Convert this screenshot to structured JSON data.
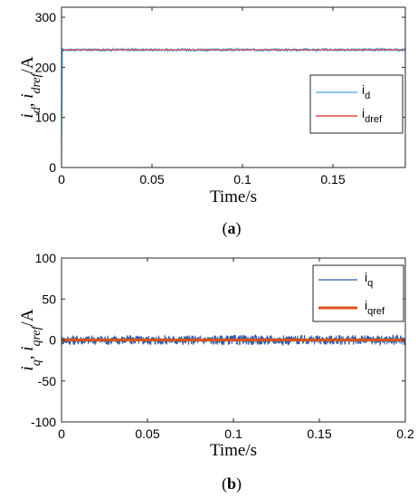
{
  "chart_data": [
    {
      "type": "line",
      "xlim": [
        0,
        0.19
      ],
      "ylim": [
        0,
        320
      ],
      "xticks": [
        0,
        0.05,
        0.1,
        0.15
      ],
      "xtick_labels": [
        "0",
        "0.05",
        "0.1",
        "0.15"
      ],
      "yticks": [
        0,
        100,
        200,
        300
      ],
      "ytick_labels": [
        "0",
        "100",
        "200",
        "300"
      ],
      "xlabel": "Time/s",
      "ylabel": {
        "parts": [
          [
            "i",
            "it",
            ""
          ],
          [
            "d",
            "it",
            "sub"
          ],
          [
            ", ",
            "it",
            ""
          ],
          [
            "i",
            "it",
            ""
          ],
          [
            "dref",
            "it",
            "sub"
          ],
          [
            "/A",
            "",
            ""
          ]
        ]
      },
      "caption": {
        "open": "(",
        "letter": "a",
        "close": ")"
      },
      "legend_position": "right",
      "series": [
        {
          "legend_main": "i",
          "legend_sub": "d",
          "color": "#4aa8d8",
          "x": [
            0,
            0.0005,
            0.19
          ],
          "y": [
            0,
            235,
            235
          ],
          "noise": 2.5
        },
        {
          "legend_main": "i",
          "legend_sub": "dref",
          "color": "#e8232a",
          "x": [
            0,
            0.19
          ],
          "y": [
            235,
            235
          ],
          "noise": 0
        }
      ]
    },
    {
      "type": "line",
      "xlim": [
        0,
        0.2
      ],
      "ylim": [
        -100,
        100
      ],
      "xticks": [
        0,
        0.05,
        0.1,
        0.15,
        0.2
      ],
      "xtick_labels": [
        "0",
        "0.05",
        "0.1",
        "0.15",
        "0.2"
      ],
      "yticks": [
        -100,
        -50,
        0,
        50,
        100
      ],
      "ytick_labels": [
        "-100",
        "-50",
        "0",
        "50",
        "100"
      ],
      "xlabel": "Time/s",
      "ylabel": {
        "parts": [
          [
            "i",
            "it",
            ""
          ],
          [
            "q",
            "it",
            "sub"
          ],
          [
            ", ",
            "it",
            ""
          ],
          [
            "i",
            "it",
            ""
          ],
          [
            "qref",
            "it",
            "sub"
          ],
          [
            "/A",
            "",
            ""
          ]
        ]
      },
      "caption": {
        "open": "(",
        "letter": "b",
        "close": ")"
      },
      "legend_position": "top-right",
      "series": [
        {
          "legend_main": "i",
          "legend_sub": "q",
          "color": "#2f5ca8",
          "x": [
            0,
            0.2
          ],
          "y": [
            0,
            0
          ],
          "noise": 6
        },
        {
          "legend_main": "i",
          "legend_sub": "qref",
          "color": "#d95319",
          "x": [
            0,
            0.2
          ],
          "y": [
            0,
            0
          ],
          "noise": 0
        }
      ]
    }
  ]
}
